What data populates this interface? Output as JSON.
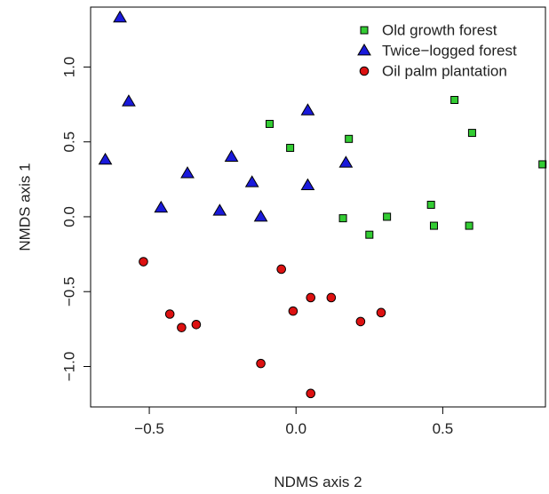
{
  "chart_data": {
    "type": "scatter",
    "title": "",
    "xlabel": "NDMS axis 2",
    "ylabel": "NMDS axis 1",
    "xlim": [
      -0.7,
      0.85
    ],
    "ylim": [
      -1.27,
      1.4
    ],
    "x_ticks": [
      -0.5,
      0.0,
      0.5
    ],
    "y_ticks": [
      -1.0,
      -0.5,
      0.0,
      0.5,
      1.0
    ],
    "x_tick_labels": [
      "−0.5",
      "0.0",
      "0.5"
    ],
    "y_tick_labels": [
      "−1.0",
      "−0.5",
      "0.0",
      "0.5",
      "1.0"
    ],
    "grid": false,
    "legend_position": "top-right",
    "series": [
      {
        "name": "Old growth forest",
        "marker": "square",
        "color": "#33cc33",
        "points": [
          [
            -0.09,
            0.62
          ],
          [
            -0.02,
            0.46
          ],
          [
            0.18,
            0.52
          ],
          [
            0.54,
            0.78
          ],
          [
            0.6,
            0.56
          ],
          [
            0.84,
            0.35
          ],
          [
            0.16,
            -0.01
          ],
          [
            0.25,
            -0.12
          ],
          [
            0.31,
            0.0
          ],
          [
            0.46,
            0.08
          ],
          [
            0.47,
            -0.06
          ],
          [
            0.59,
            -0.06
          ]
        ]
      },
      {
        "name": "Twice−logged forest",
        "marker": "triangle",
        "color": "#1a1adb",
        "points": [
          [
            -0.6,
            1.33
          ],
          [
            -0.57,
            0.77
          ],
          [
            -0.65,
            0.38
          ],
          [
            -0.37,
            0.29
          ],
          [
            -0.22,
            0.4
          ],
          [
            -0.15,
            0.23
          ],
          [
            -0.46,
            0.06
          ],
          [
            -0.26,
            0.04
          ],
          [
            -0.12,
            0.0
          ],
          [
            0.04,
            0.71
          ],
          [
            0.04,
            0.21
          ],
          [
            0.17,
            0.36
          ]
        ]
      },
      {
        "name": "Oil palm plantation",
        "marker": "circle",
        "color": "#dd1111",
        "points": [
          [
            -0.52,
            -0.3
          ],
          [
            -0.43,
            -0.65
          ],
          [
            -0.39,
            -0.74
          ],
          [
            -0.34,
            -0.72
          ],
          [
            -0.05,
            -0.35
          ],
          [
            -0.01,
            -0.63
          ],
          [
            0.05,
            -0.54
          ],
          [
            0.12,
            -0.54
          ],
          [
            0.22,
            -0.7
          ],
          [
            0.29,
            -0.64
          ],
          [
            -0.12,
            -0.98
          ],
          [
            0.05,
            -1.18
          ]
        ]
      }
    ]
  }
}
